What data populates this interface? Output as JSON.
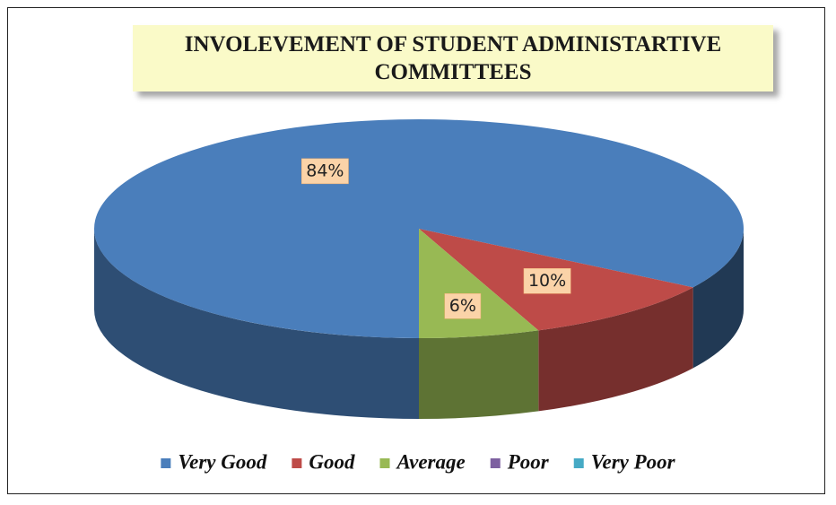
{
  "chart_data": {
    "type": "pie3d",
    "title": "INVOLEVEMENT OF STUDENT ADMINISTARTIVE COMMITTEES",
    "categories": [
      "Very Good",
      "Good",
      "Average",
      "Poor",
      "Very Poor"
    ],
    "values": [
      84,
      10,
      6,
      0,
      0
    ],
    "value_labels": [
      "84%",
      "10%",
      "6%",
      null,
      null
    ],
    "colors": [
      "#4a7ebb",
      "#be4b48",
      "#98b954",
      "#7d60a0",
      "#46aac5"
    ],
    "legend": "bottom"
  }
}
